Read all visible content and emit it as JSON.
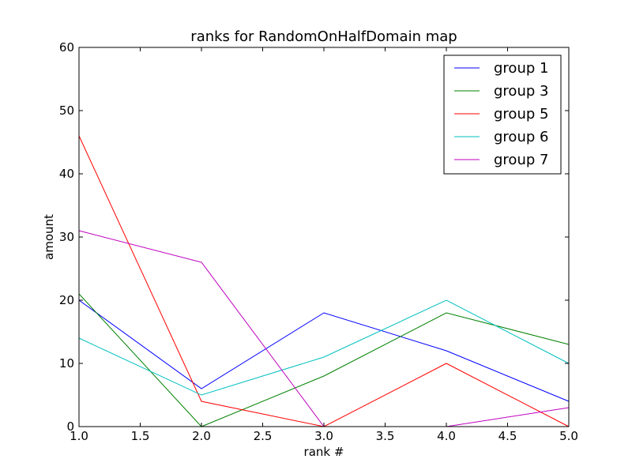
{
  "chart_data": {
    "type": "line",
    "title": "ranks for RandomOnHalfDomain map",
    "xlabel": "rank #",
    "ylabel": "amount",
    "x": [
      1,
      2,
      3,
      4,
      5
    ],
    "xlim": [
      1.0,
      5.0
    ],
    "ylim": [
      0,
      60
    ],
    "xticks": [
      "1.0",
      "1.5",
      "2.0",
      "2.5",
      "3.0",
      "3.5",
      "4.0",
      "4.5",
      "5.0"
    ],
    "yticks": [
      "0",
      "10",
      "20",
      "30",
      "40",
      "50",
      "60"
    ],
    "grid": false,
    "legend_position": "top-right",
    "series": [
      {
        "name": "group 1",
        "color": "#0000ff",
        "values": [
          20,
          6,
          18,
          12,
          4
        ]
      },
      {
        "name": "group 3",
        "color": "#008000",
        "values": [
          21,
          0,
          8,
          18,
          13
        ]
      },
      {
        "name": "group 5",
        "color": "#ff0000",
        "values": [
          46,
          4,
          0,
          10,
          0
        ]
      },
      {
        "name": "group 6",
        "color": "#00bfbf",
        "values": [
          14,
          5,
          11,
          20,
          10
        ]
      },
      {
        "name": "group 7",
        "color": "#bf00bf",
        "values": [
          31,
          26,
          0,
          0,
          3
        ]
      }
    ]
  }
}
